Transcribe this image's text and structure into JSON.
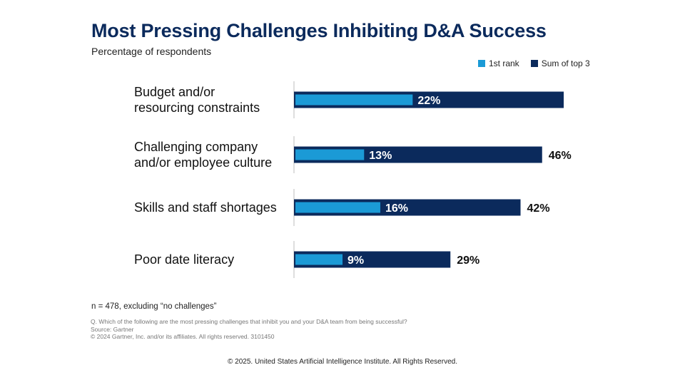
{
  "title": "Most Pressing Challenges Inhibiting D&A Success",
  "subtitle": "Percentage of respondents",
  "colors": {
    "first_rank": "#1b9ad6",
    "sum_top3": "#0b2a5c",
    "title": "#0b2a5c"
  },
  "chart_data": {
    "type": "bar",
    "orientation": "horizontal",
    "title": "Most Pressing Challenges Inhibiting D&A Success",
    "subtitle": "Percentage of respondents",
    "legend": [
      "1st rank",
      "Sum of top 3"
    ],
    "legend_position": "top-right",
    "categories": [
      [
        "Budget and/or",
        "resourcing constraints"
      ],
      [
        "Challenging company",
        "and/or employee culture"
      ],
      [
        "Skills and staff shortages"
      ],
      [
        "Poor date literacy"
      ]
    ],
    "series": [
      {
        "name": "1st rank",
        "values": [
          22,
          13,
          16,
          9
        ],
        "labels": [
          "22%",
          "13%",
          "16%",
          "9%"
        ]
      },
      {
        "name": "Sum of top 3",
        "values": [
          50,
          46,
          42,
          29
        ],
        "labels": [
          "",
          "46%",
          "42%",
          "29%"
        ]
      }
    ],
    "xlim": [
      0,
      50
    ],
    "grid": false
  },
  "footnotes": {
    "n": "n = 478, excluding “no challenges”",
    "question": "Q. Which of the following are the most pressing challenges that inhibit you and your D&A team from being successful?",
    "source": "Source: Gartner",
    "copyright": "© 2024 Gartner, Inc. and/or its affiliates. All rights reserved. 3101450"
  },
  "bottom_copyright": "© 2025. United States Artificial Intelligence Institute. All Rights Reserved."
}
